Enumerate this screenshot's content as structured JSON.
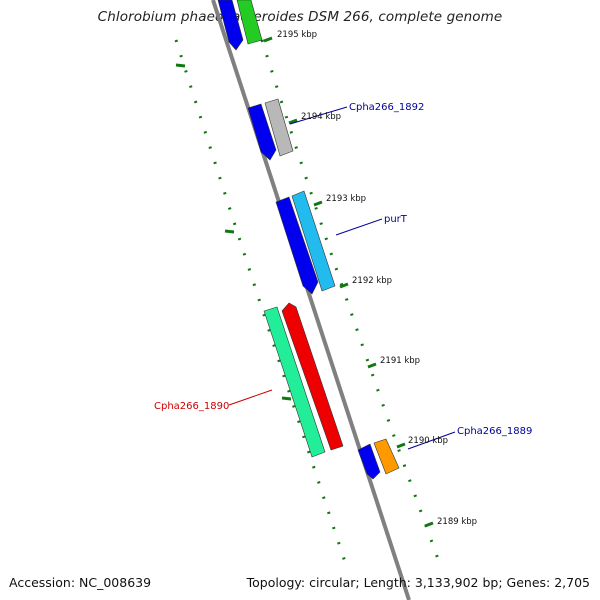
{
  "title": "Chlorobium phaeobacteroides DSM 266, complete genome",
  "footer": {
    "accession": "Accession: NC_008639",
    "topology": "Topology: circular; Length: 3,133,902 bp; Genes: 2,705"
  },
  "kbp_ticks": [
    "2195 kbp",
    "2194 kbp",
    "2193 kbp",
    "2192 kbp",
    "2191 kbp",
    "2190 kbp",
    "2189 kbp"
  ],
  "gene_labels": {
    "g1892": "Cpha266_1892",
    "purT": "purT",
    "g1890": "Cpha266_1890",
    "g1889": "Cpha266_1889"
  },
  "colors": {
    "backbone": "#808080",
    "blue_feature": "#0000ee",
    "green_feature": "#22cc22",
    "grey_feature": "#b8b8b8",
    "cyan_feature": "#22bbee",
    "mint_feature": "#22ee99",
    "red_feature": "#ee0000",
    "orange_feature": "#ff9900",
    "tick": "#117711",
    "label_blue": "#000099",
    "label_red": "#cc0000"
  }
}
